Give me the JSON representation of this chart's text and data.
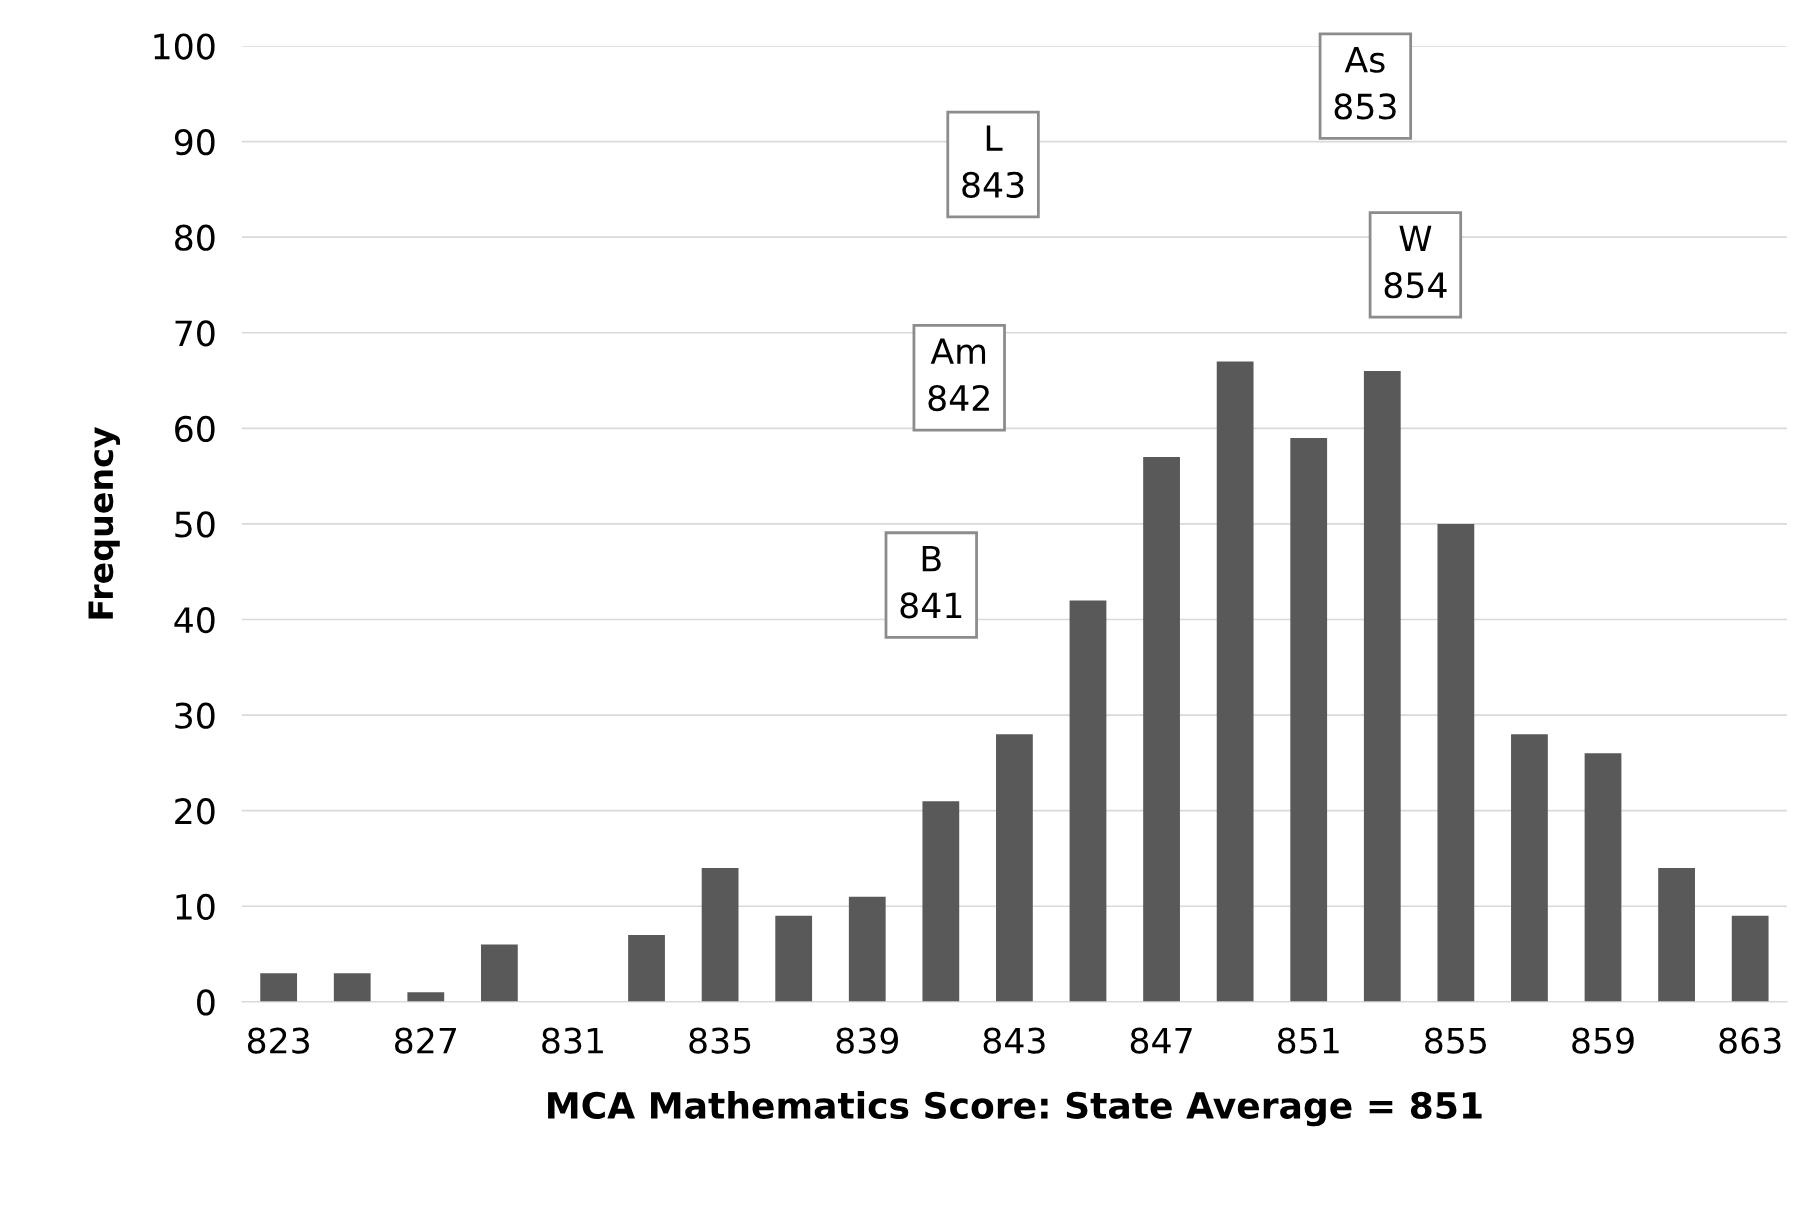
{
  "chart_data": {
    "type": "bar",
    "xlabel": "MCA Mathematics Score: State Average = 851",
    "ylabel": "Frequency",
    "categories": [
      "823",
      null,
      "827",
      null,
      "831",
      null,
      "835",
      null,
      "839",
      null,
      "843",
      null,
      "847",
      null,
      "851",
      null,
      "855",
      null,
      "859",
      null,
      "863"
    ],
    "values": [
      3,
      3,
      1,
      6,
      0,
      7,
      14,
      9,
      11,
      21,
      28,
      42,
      57,
      67,
      59,
      66,
      50,
      28,
      26,
      14,
      9
    ],
    "color": "#595959",
    "ylim": [
      0,
      100
    ],
    "yticks": [
      0,
      10,
      20,
      30,
      40,
      50,
      60,
      70,
      80,
      90,
      100
    ],
    "grid": "y",
    "annotations": [
      "B\n841",
      "Am\n842",
      "L\n843",
      "As\n853",
      "W\n854"
    ]
  }
}
